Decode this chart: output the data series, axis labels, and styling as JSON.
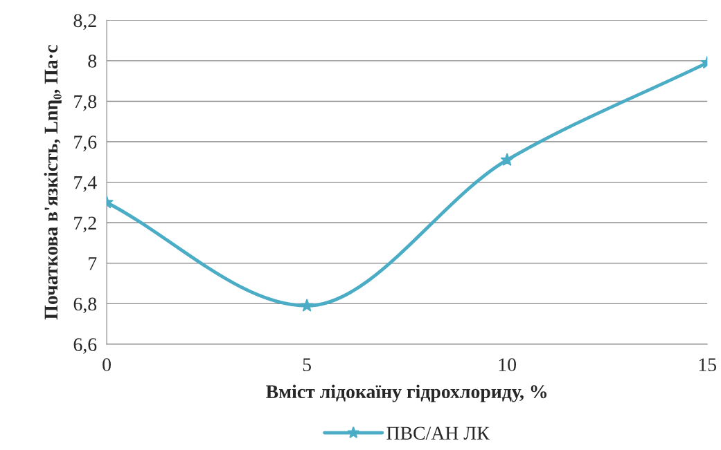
{
  "chart_data": {
    "type": "line",
    "xlabel": "Вміст лідокаїну гідрохлориду, %",
    "ylabel": "Початкова в'язкість, Lnη₀, Па·с",
    "x": [
      0,
      5,
      10,
      15
    ],
    "series": [
      {
        "name": "ПВС/АН ЛК",
        "color": "#4bacc6",
        "values": [
          7.3,
          6.79,
          7.51,
          7.99
        ]
      }
    ],
    "xlim": [
      0,
      15
    ],
    "xticks": [
      0,
      5,
      10,
      15
    ],
    "ylim": [
      6.6,
      8.2
    ],
    "yticks": [
      {
        "value": 6.6,
        "label": "6,6"
      },
      {
        "value": 6.8,
        "label": "6,8"
      },
      7,
      {
        "value": 7.2,
        "label": "7,2"
      },
      {
        "value": 7.4,
        "label": "7,4"
      },
      {
        "value": 7.6,
        "label": "7,6"
      },
      {
        "value": 7.8,
        "label": "7,8"
      },
      8,
      {
        "value": 8.2,
        "label": "8,2"
      }
    ],
    "grid": "y",
    "legend": "bottom",
    "marker": "star",
    "line_style": "solid"
  }
}
